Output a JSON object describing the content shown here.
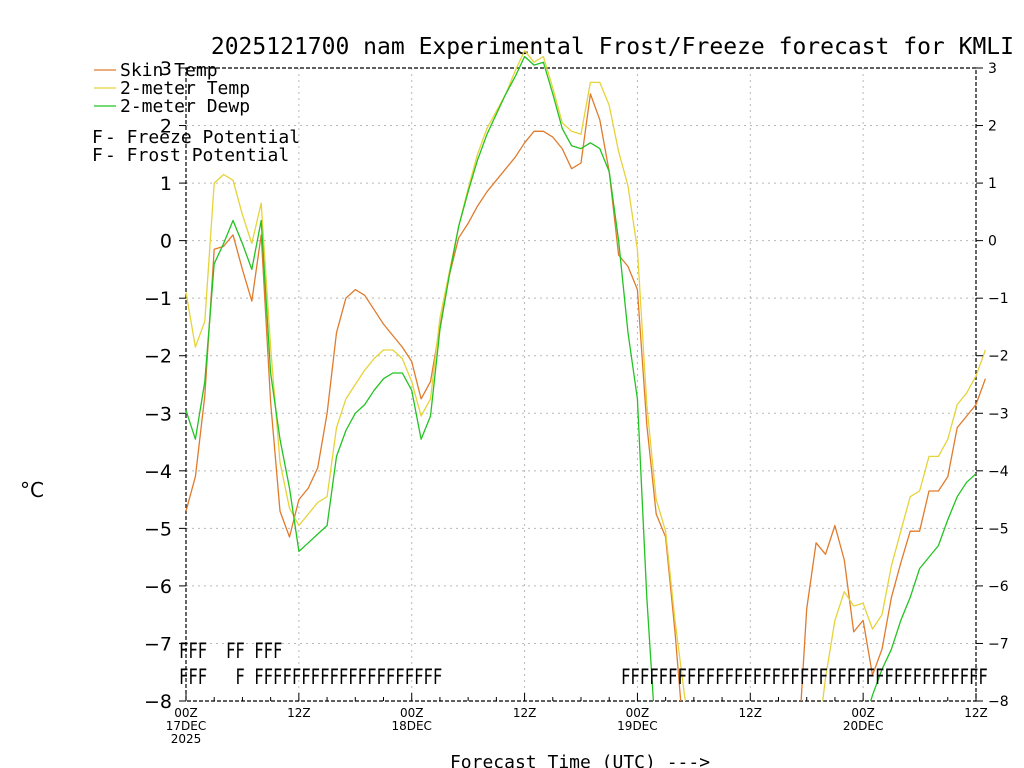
{
  "chart_data": {
    "type": "line",
    "title": "2025121700 nam Experimental Frost/Freeze forecast for KMLI",
    "xlabel": "Forecast Time (UTC) --->",
    "ylabel": "°C",
    "ylim": [
      -8,
      3
    ],
    "xlim": [
      0,
      84
    ],
    "grid": true,
    "y_ticks": [
      -8,
      -7,
      -6,
      -5,
      -4,
      -3,
      -2,
      -1,
      0,
      1,
      2,
      3
    ],
    "x_ticks": [
      {
        "x": 0,
        "label": "00Z",
        "sub1": "17DEC",
        "sub2": "2025"
      },
      {
        "x": 12,
        "label": "12Z",
        "sub1": "",
        "sub2": ""
      },
      {
        "x": 24,
        "label": "00Z",
        "sub1": "18DEC",
        "sub2": ""
      },
      {
        "x": 36,
        "label": "12Z",
        "sub1": "",
        "sub2": ""
      },
      {
        "x": 48,
        "label": "00Z",
        "sub1": "19DEC",
        "sub2": ""
      },
      {
        "x": 60,
        "label": "12Z",
        "sub1": "",
        "sub2": ""
      },
      {
        "x": 72,
        "label": "00Z",
        "sub1": "20DEC",
        "sub2": ""
      },
      {
        "x": 84,
        "label": "12Z",
        "sub1": "",
        "sub2": ""
      }
    ],
    "legend": [
      {
        "label": "Skin Temp",
        "color": "#e07b2c"
      },
      {
        "label": "2-meter Temp",
        "color": "#e6d33a"
      },
      {
        "label": "2-meter Dewp",
        "color": "#22c322"
      }
    ],
    "potential_legend": [
      {
        "symbol": "F",
        "label": " - Freeze Potential",
        "color": "#e0207a"
      },
      {
        "symbol": "F",
        "label": " - Frost Potential",
        "color": "#3a56d8"
      }
    ],
    "series": [
      {
        "name": "Skin Temp",
        "color": "#e07b2c",
        "points": [
          [
            0,
            -4.7
          ],
          [
            1,
            -4.1
          ],
          [
            2,
            -2.7
          ],
          [
            3,
            -0.15
          ],
          [
            4,
            -0.1
          ],
          [
            5,
            0.1
          ],
          [
            6,
            -0.5
          ],
          [
            7,
            -1.05
          ],
          [
            8,
            0.1
          ],
          [
            9,
            -2.8
          ],
          [
            10,
            -4.7
          ],
          [
            11,
            -5.15
          ],
          [
            12,
            -4.5
          ],
          [
            13,
            -4.3
          ],
          [
            14,
            -3.95
          ],
          [
            15,
            -3.0
          ],
          [
            16,
            -1.6
          ],
          [
            17,
            -1.0
          ],
          [
            18,
            -0.85
          ],
          [
            19,
            -0.95
          ],
          [
            20,
            -1.2
          ],
          [
            21,
            -1.45
          ],
          [
            22,
            -1.65
          ],
          [
            23,
            -1.85
          ],
          [
            24,
            -2.1
          ],
          [
            25,
            -2.75
          ],
          [
            26,
            -2.45
          ],
          [
            27,
            -1.5
          ],
          [
            28,
            -0.6
          ],
          [
            29,
            0.05
          ],
          [
            30,
            0.3
          ],
          [
            31,
            0.6
          ],
          [
            32,
            0.85
          ],
          [
            33,
            1.05
          ],
          [
            34,
            1.25
          ],
          [
            35,
            1.45
          ],
          [
            36,
            1.7
          ],
          [
            37,
            1.9
          ],
          [
            38,
            1.9
          ],
          [
            39,
            1.8
          ],
          [
            40,
            1.6
          ],
          [
            41,
            1.25
          ],
          [
            42,
            1.35
          ],
          [
            43,
            2.55
          ],
          [
            44,
            2.1
          ],
          [
            45,
            1.2
          ],
          [
            46,
            -0.25
          ],
          [
            47,
            -0.45
          ],
          [
            48,
            -0.85
          ],
          [
            49,
            -3.2
          ],
          [
            50,
            -4.75
          ],
          [
            51,
            -5.15
          ],
          [
            52,
            -6.8
          ],
          [
            52.6,
            -8.0
          ]
        ]
      },
      {
        "name": "Skin Temp",
        "color": "#e07b2c",
        "points": [
          [
            65.4,
            -8.0
          ],
          [
            66,
            -6.4
          ],
          [
            67,
            -5.25
          ],
          [
            68,
            -5.45
          ],
          [
            69,
            -4.95
          ],
          [
            70,
            -5.55
          ],
          [
            71,
            -6.8
          ],
          [
            72,
            -6.6
          ],
          [
            73,
            -7.55
          ],
          [
            74,
            -7.1
          ],
          [
            75,
            -6.2
          ],
          [
            76,
            -5.6
          ],
          [
            77,
            -5.05
          ],
          [
            78,
            -5.05
          ],
          [
            79,
            -4.35
          ],
          [
            80,
            -4.35
          ],
          [
            81,
            -4.1
          ],
          [
            82,
            -3.25
          ],
          [
            83,
            -3.05
          ],
          [
            84,
            -2.85
          ],
          [
            85,
            -2.4
          ]
        ]
      },
      {
        "name": "2-meter Temp",
        "color": "#e6d33a",
        "points": [
          [
            0,
            -0.9
          ],
          [
            1,
            -1.85
          ],
          [
            2,
            -1.4
          ],
          [
            3,
            1.0
          ],
          [
            4,
            1.15
          ],
          [
            5,
            1.05
          ],
          [
            6,
            0.45
          ],
          [
            7,
            -0.05
          ],
          [
            8,
            0.65
          ],
          [
            9,
            -1.85
          ],
          [
            10,
            -3.85
          ],
          [
            11,
            -4.65
          ],
          [
            12,
            -4.95
          ],
          [
            13,
            -4.75
          ],
          [
            14,
            -4.55
          ],
          [
            15,
            -4.45
          ],
          [
            16,
            -3.25
          ],
          [
            17,
            -2.75
          ],
          [
            18,
            -2.5
          ],
          [
            19,
            -2.25
          ],
          [
            20,
            -2.05
          ],
          [
            21,
            -1.9
          ],
          [
            22,
            -1.9
          ],
          [
            23,
            -2.05
          ],
          [
            24,
            -2.45
          ],
          [
            25,
            -3.05
          ],
          [
            26,
            -2.75
          ],
          [
            27,
            -1.35
          ],
          [
            28,
            -0.55
          ],
          [
            29,
            0.25
          ],
          [
            30,
            0.9
          ],
          [
            31,
            1.5
          ],
          [
            32,
            1.95
          ],
          [
            33,
            2.25
          ],
          [
            34,
            2.55
          ],
          [
            35,
            2.95
          ],
          [
            36,
            3.3
          ],
          [
            37,
            3.1
          ],
          [
            38,
            3.2
          ],
          [
            39,
            2.65
          ],
          [
            40,
            2.05
          ],
          [
            41,
            1.9
          ],
          [
            42,
            1.85
          ],
          [
            43,
            2.75
          ],
          [
            44,
            2.75
          ],
          [
            45,
            2.35
          ],
          [
            46,
            1.55
          ],
          [
            47,
            0.95
          ],
          [
            48,
            -0.15
          ],
          [
            49,
            -2.85
          ],
          [
            50,
            -4.5
          ],
          [
            51,
            -5.05
          ],
          [
            52,
            -6.6
          ],
          [
            53,
            -7.9
          ],
          [
            53.1,
            -8.0
          ]
        ]
      },
      {
        "name": "2-meter Temp",
        "color": "#e6d33a",
        "points": [
          [
            67.7,
            -8.0
          ],
          [
            68,
            -7.6
          ],
          [
            69,
            -6.6
          ],
          [
            70,
            -6.1
          ],
          [
            71,
            -6.35
          ],
          [
            72,
            -6.3
          ],
          [
            73,
            -6.75
          ],
          [
            74,
            -6.5
          ],
          [
            75,
            -5.65
          ],
          [
            76,
            -5.05
          ],
          [
            77,
            -4.45
          ],
          [
            78,
            -4.35
          ],
          [
            79,
            -3.75
          ],
          [
            80,
            -3.75
          ],
          [
            81,
            -3.45
          ],
          [
            82,
            -2.85
          ],
          [
            83,
            -2.65
          ],
          [
            84,
            -2.35
          ],
          [
            85,
            -1.9
          ]
        ]
      },
      {
        "name": "2-meter Dewp",
        "color": "#22c322",
        "points": [
          [
            0,
            -2.95
          ],
          [
            1,
            -3.45
          ],
          [
            2,
            -2.45
          ],
          [
            3,
            -0.4
          ],
          [
            4,
            -0.05
          ],
          [
            5,
            0.35
          ],
          [
            6,
            -0.05
          ],
          [
            7,
            -0.5
          ],
          [
            8,
            0.35
          ],
          [
            9,
            -2.3
          ],
          [
            10,
            -3.45
          ],
          [
            11,
            -4.3
          ],
          [
            12,
            -5.4
          ],
          [
            13,
            -5.25
          ],
          [
            14,
            -5.1
          ],
          [
            15,
            -4.95
          ],
          [
            16,
            -3.75
          ],
          [
            17,
            -3.3
          ],
          [
            18,
            -3.0
          ],
          [
            19,
            -2.85
          ],
          [
            20,
            -2.6
          ],
          [
            21,
            -2.4
          ],
          [
            22,
            -2.3
          ],
          [
            23,
            -2.3
          ],
          [
            24,
            -2.6
          ],
          [
            25,
            -3.45
          ],
          [
            26,
            -3.05
          ],
          [
            27,
            -1.55
          ],
          [
            28,
            -0.6
          ],
          [
            29,
            0.25
          ],
          [
            30,
            0.85
          ],
          [
            31,
            1.4
          ],
          [
            32,
            1.85
          ],
          [
            33,
            2.2
          ],
          [
            34,
            2.55
          ],
          [
            35,
            2.85
          ],
          [
            36,
            3.2
          ],
          [
            37,
            3.05
          ],
          [
            38,
            3.1
          ],
          [
            39,
            2.55
          ],
          [
            40,
            1.95
          ],
          [
            41,
            1.65
          ],
          [
            42,
            1.6
          ],
          [
            43,
            1.7
          ],
          [
            44,
            1.6
          ],
          [
            45,
            1.2
          ],
          [
            46,
            0.0
          ],
          [
            47,
            -1.6
          ],
          [
            48,
            -2.75
          ],
          [
            49,
            -6.2
          ],
          [
            49.7,
            -8.0
          ]
        ]
      },
      {
        "name": "2-meter Dewp",
        "color": "#22c322",
        "points": [
          [
            72.8,
            -8.0
          ],
          [
            73,
            -7.9
          ],
          [
            74,
            -7.45
          ],
          [
            75,
            -7.1
          ],
          [
            76,
            -6.6
          ],
          [
            77,
            -6.2
          ],
          [
            78,
            -5.7
          ],
          [
            79,
            -5.5
          ],
          [
            80,
            -5.3
          ],
          [
            81,
            -4.85
          ],
          [
            82,
            -4.45
          ],
          [
            83,
            -4.2
          ],
          [
            84,
            -4.05
          ]
        ]
      }
    ],
    "frost_row": {
      "text": "FFF FF FFF",
      "color": "#3a56d8",
      "value_y": -7.1,
      "segments": [
        {
          "start": 0,
          "text": "FFF"
        },
        {
          "start": 5,
          "text": "FF"
        },
        {
          "start": 8,
          "text": "FFF"
        }
      ]
    },
    "freeze_row": {
      "color": "#e0207a",
      "value_y": -7.55,
      "segments": [
        {
          "start": 0,
          "text": "FFF"
        },
        {
          "start": 6,
          "text": "F"
        },
        {
          "start": 8,
          "text": "FFFFFFFFFFFFFFFFFFFF"
        },
        {
          "start": 47,
          "text": "FFFFFFFFFFFFFFFFFFFFFFFFFFFFFFFFFFFFFFF"
        }
      ]
    }
  }
}
